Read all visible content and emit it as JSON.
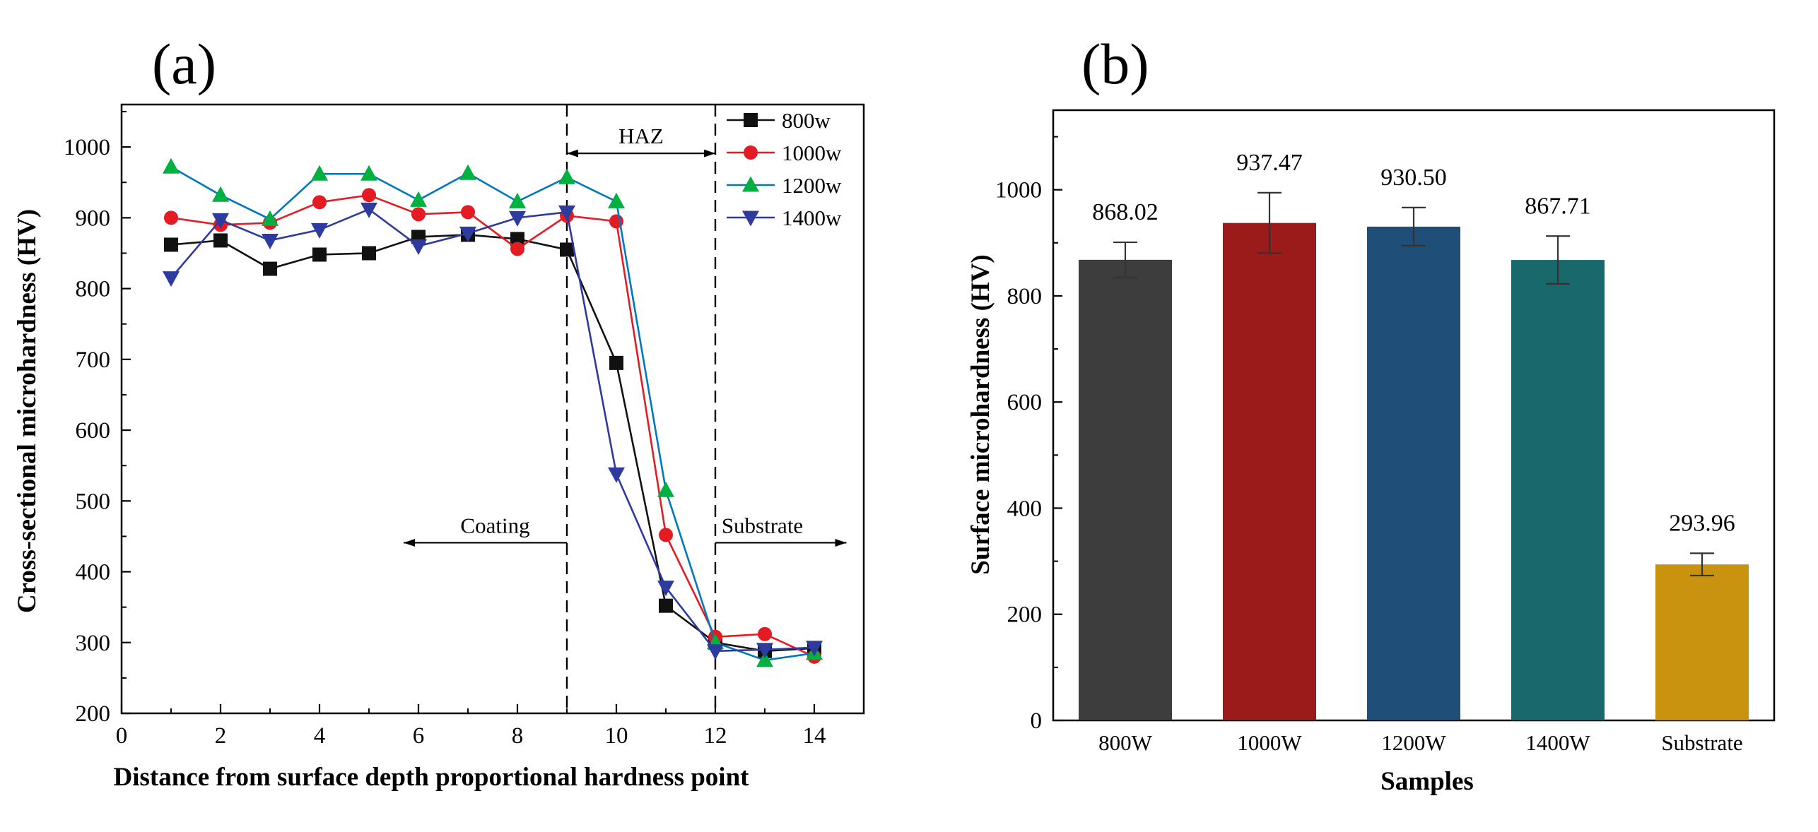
{
  "figure": {
    "panel_a_label": "(a)",
    "panel_b_label": "(b)",
    "background": "#ffffff"
  },
  "chart_data": [
    {
      "id": "panel-a",
      "type": "line",
      "title": "",
      "xlabel": "Distance from surface depth proportional hardness point",
      "ylabel": "Cross-sectional microhardness (HV)",
      "xlim": [
        0,
        15
      ],
      "ylim": [
        200,
        1060
      ],
      "xticks": [
        0,
        2,
        4,
        6,
        8,
        10,
        12,
        14
      ],
      "xminor": [
        1,
        3,
        5,
        7,
        9,
        11,
        13
      ],
      "yticks": [
        200,
        300,
        400,
        500,
        600,
        700,
        800,
        900,
        1000
      ],
      "yminor_step": 50,
      "grid": false,
      "legend_position": "top-right-inside",
      "x": [
        1,
        2,
        3,
        4,
        5,
        6,
        7,
        8,
        9,
        10,
        11,
        12,
        13,
        14
      ],
      "series": [
        {
          "name": "800w",
          "marker": "square",
          "marker_color": "#111111",
          "line_color": "#111111",
          "values": [
            862,
            868,
            828,
            848,
            850,
            873,
            876,
            870,
            855,
            695,
            352,
            300,
            288,
            292
          ]
        },
        {
          "name": "1000w",
          "marker": "circle",
          "marker_color": "#e41b23",
          "line_color": "#e41b23",
          "values": [
            900,
            890,
            893,
            922,
            932,
            905,
            908,
            856,
            903,
            895,
            452,
            308,
            312,
            280
          ]
        },
        {
          "name": "1200w",
          "marker": "triangle-up",
          "marker_color": "#00b040",
          "line_color": "#0077be",
          "values": [
            972,
            932,
            898,
            962,
            962,
            925,
            963,
            923,
            957,
            923,
            515,
            300,
            275,
            285
          ]
        },
        {
          "name": "1400w",
          "marker": "triangle-down",
          "marker_color": "#2d3a9e",
          "line_color": "#2d3a9e",
          "values": [
            815,
            897,
            868,
            883,
            912,
            860,
            878,
            900,
            908,
            538,
            378,
            288,
            290,
            293
          ]
        }
      ],
      "dashed_vlines": [
        9,
        12
      ],
      "annotations": [
        {
          "text": "HAZ",
          "x": 10.5,
          "y": 1016
        },
        {
          "text": "Coating",
          "x": 7.55,
          "y": 466
        },
        {
          "text": "Substrate",
          "x": 12.95,
          "y": 466
        }
      ],
      "arrows": [
        {
          "x1": 9,
          "y1": 991,
          "x2": 12,
          "y2": 991,
          "heads": "both"
        },
        {
          "x1": 9,
          "y1": 441,
          "x2": 5.7,
          "y2": 441,
          "heads": "end"
        },
        {
          "x1": 12,
          "y1": 441,
          "x2": 14.65,
          "y2": 441,
          "heads": "end"
        }
      ]
    },
    {
      "id": "panel-b",
      "type": "bar",
      "title": "",
      "xlabel": "Samples",
      "ylabel": "Surface microhardness (HV)",
      "categories": [
        "800W",
        "1000W",
        "1200W",
        "1400W",
        "Substrate"
      ],
      "values": [
        868.02,
        937.47,
        930.5,
        867.71,
        293.96
      ],
      "value_labels": [
        "868.02",
        "937.47",
        "930.50",
        "867.71",
        "293.96"
      ],
      "errors": [
        33,
        57,
        36,
        45,
        21
      ],
      "colors": [
        "#3d3d3d",
        "#9b1b1b",
        "#1f4e79",
        "#17696b",
        "#c9930f"
      ],
      "error_color": "#333333",
      "ylim": [
        0,
        1150
      ],
      "yticks": [
        0,
        200,
        400,
        600,
        800,
        1000
      ],
      "yminor_step": 100,
      "grid": false
    }
  ]
}
